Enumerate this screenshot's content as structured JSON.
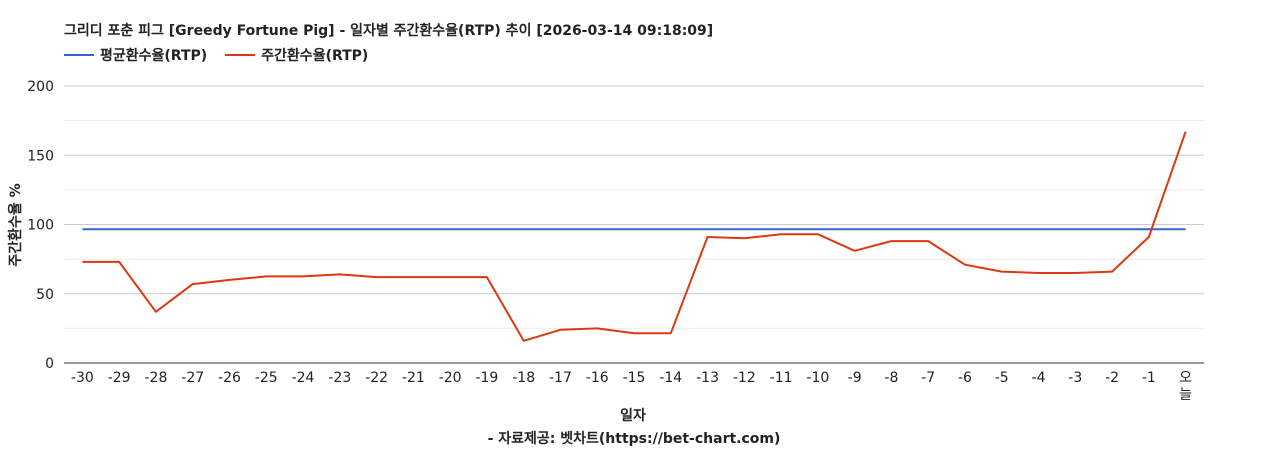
{
  "chart_data": {
    "type": "line",
    "title": "그리디 포춘 피그 [Greedy Fortune Pig] - 일자별 주간환수율(RTP) 추이 [2026-03-14 09:18:09]",
    "xlabel": "일자",
    "ylabel": "주간환수율 %",
    "footer": "- 자료제공: 벳차트(https://bet-chart.com)",
    "categories": [
      "-30",
      "-29",
      "-28",
      "-27",
      "-26",
      "-25",
      "-24",
      "-23",
      "-22",
      "-21",
      "-20",
      "-19",
      "-18",
      "-17",
      "-16",
      "-15",
      "-14",
      "-13",
      "-12",
      "-11",
      "-10",
      "-9",
      "-8",
      "-7",
      "-6",
      "-5",
      "-4",
      "-3",
      "-2",
      "-1",
      "오\n늘"
    ],
    "ylim": [
      0,
      200
    ],
    "yticks": [
      0,
      50,
      100,
      150,
      200
    ],
    "grid": true,
    "legend_position": "top-left",
    "series": [
      {
        "name": "평균환수율(RTP)",
        "color": "#3366cc",
        "values": [
          96.5,
          96.5,
          96.5,
          96.5,
          96.5,
          96.5,
          96.5,
          96.5,
          96.5,
          96.5,
          96.5,
          96.5,
          96.5,
          96.5,
          96.5,
          96.5,
          96.5,
          96.5,
          96.5,
          96.5,
          96.5,
          96.5,
          96.5,
          96.5,
          96.5,
          96.5,
          96.5,
          96.5,
          96.5,
          96.5,
          96.5
        ]
      },
      {
        "name": "주간환수율(RTP)",
        "color": "#dc3912",
        "values": [
          73,
          73,
          37,
          57,
          60,
          62.5,
          62.5,
          64,
          62,
          62,
          62,
          62,
          16,
          24,
          25,
          21.5,
          21.5,
          91,
          90,
          93,
          93,
          81,
          88,
          88,
          71,
          66,
          65,
          65,
          66,
          91,
          167
        ]
      }
    ]
  }
}
